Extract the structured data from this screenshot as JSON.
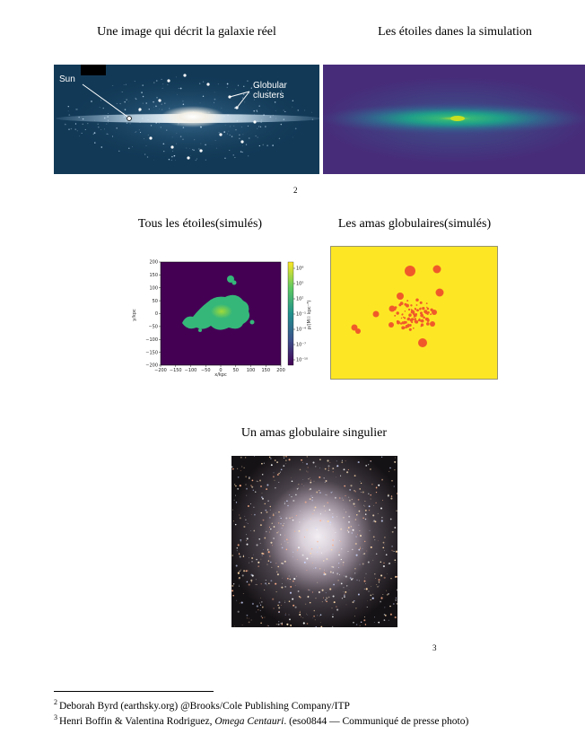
{
  "captions": {
    "real_galaxy": "Une image qui décrit la galaxie réel",
    "sim_stars": "Les étoiles danes la simulation",
    "all_stars": "Tous les étoiles(simulés)",
    "clusters_sim": "Les amas globulaires(simulés)",
    "single_cluster": "Un amas globulaire singulier"
  },
  "galaxy_labels": {
    "sun": "Sun",
    "clusters_line1": "Globular",
    "clusters_line2": "clusters"
  },
  "page_markers": {
    "ref2": "2",
    "ref3": "3"
  },
  "scatter_plot": {
    "xlabel": "x/kpc",
    "ylabel": "y/kpc",
    "x_ticks": [
      "−200",
      "−150",
      "−100",
      "−50",
      "0",
      "50",
      "100",
      "150",
      "200"
    ],
    "y_ticks": [
      "200",
      "150",
      "100",
      "50",
      "0",
      "−50",
      "−100",
      "−150",
      "−200"
    ],
    "colorbar_label": "ρ/(M☉ kpc⁻³)",
    "colorbar_ticks": [
      "10⁸",
      "10⁵",
      "10²",
      "10⁻¹",
      "10⁻⁴",
      "10⁻⁷",
      "10⁻¹⁰"
    ]
  },
  "footnotes": {
    "n2": {
      "num": "2",
      "text": "Deborah Byrd (earthsky.org) @Brooks/Cole Publishing Company/ITP"
    },
    "n3": {
      "num": "3",
      "pre": "Henri Boffin & Valentina Rodriguez, ",
      "italic": "Omega Centauri",
      "post": ". (eso0844 — Communiqué de presse photo)"
    }
  },
  "colors": {
    "viridis_dark": "#440154",
    "viridis_green": "#35b779",
    "plot_yellow": "#fde725",
    "cluster_red": "#f05a2a"
  }
}
